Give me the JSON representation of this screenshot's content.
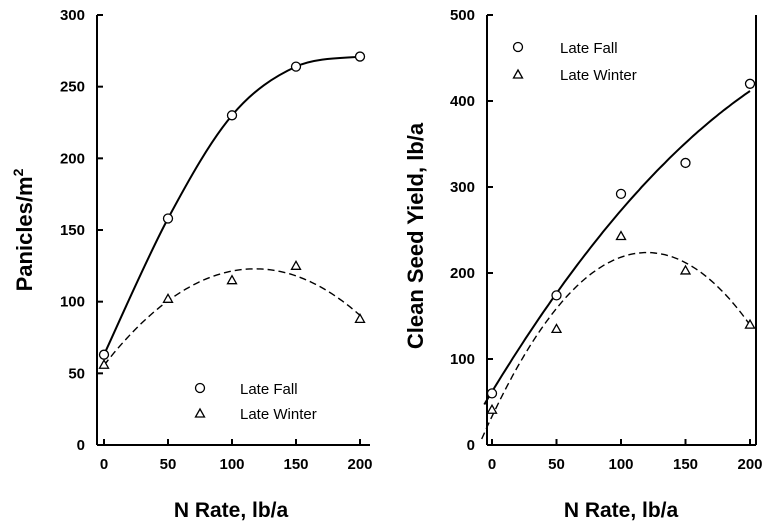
{
  "chart_data": [
    {
      "type": "scatter",
      "xlabel": "N Rate, lb/a",
      "ylabel": "Panicles/m",
      "ylabel_sup": "2",
      "xlim": [
        0,
        200
      ],
      "ylim": [
        0,
        300
      ],
      "xticks": [
        0,
        50,
        100,
        150,
        200
      ],
      "yticks": [
        0,
        50,
        100,
        150,
        200,
        250,
        300
      ],
      "legend_position": "bottom-right",
      "series": [
        {
          "name": "Late Fall",
          "marker": "circle",
          "line": "solid",
          "x": [
            0,
            50,
            100,
            150,
            200
          ],
          "y": [
            63,
            158,
            230,
            264,
            271
          ]
        },
        {
          "name": "Late Winter",
          "marker": "triangle",
          "line": "dashed",
          "x": [
            0,
            50,
            100,
            150,
            200
          ],
          "y": [
            56,
            102,
            115,
            125,
            88
          ]
        }
      ]
    },
    {
      "type": "scatter",
      "xlabel": "N Rate, lb/a",
      "ylabel": "Clean Seed Yield, lb/a",
      "xlim": [
        0,
        200
      ],
      "ylim": [
        0,
        500
      ],
      "xticks": [
        0,
        50,
        100,
        150,
        200
      ],
      "yticks": [
        0,
        100,
        200,
        300,
        400,
        500
      ],
      "legend_position": "top-left",
      "series": [
        {
          "name": "Late Fall",
          "marker": "circle",
          "line": "solid",
          "x": [
            0,
            50,
            100,
            150,
            200
          ],
          "y": [
            60,
            174,
            292,
            328,
            420
          ]
        },
        {
          "name": "Late Winter",
          "marker": "triangle",
          "line": "dashed",
          "x": [
            0,
            50,
            100,
            150,
            200
          ],
          "y": [
            41,
            135,
            243,
            203,
            140
          ]
        }
      ]
    }
  ]
}
